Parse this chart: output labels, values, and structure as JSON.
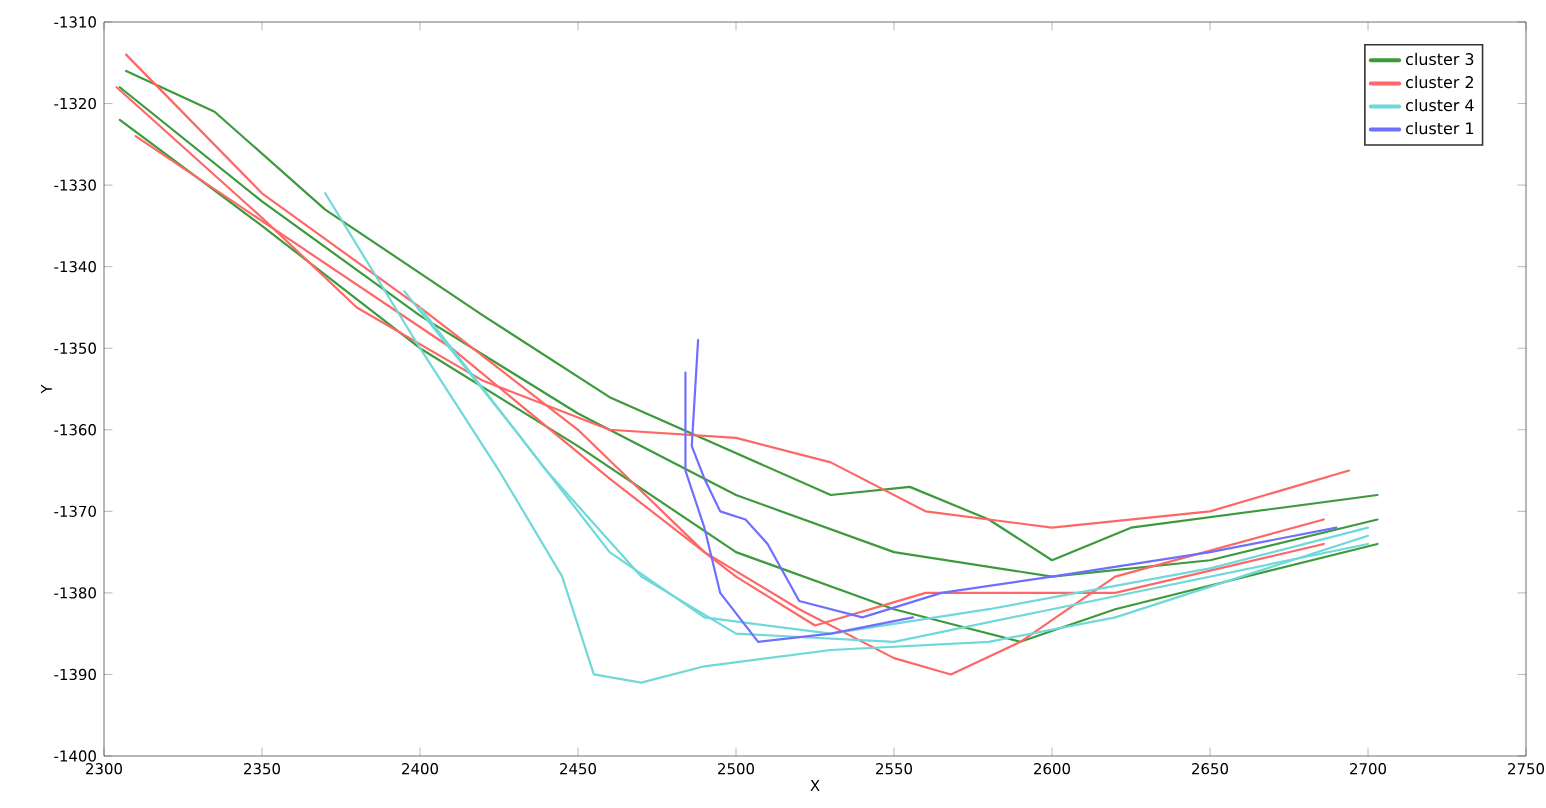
{
  "chart_data": {
    "type": "line",
    "xlabel": "X",
    "ylabel": "Y",
    "xlim": [
      2300,
      2750
    ],
    "ylim": [
      -1400,
      -1310
    ],
    "xticks": [
      2300,
      2350,
      2400,
      2450,
      2500,
      2550,
      2600,
      2650,
      2700,
      2750
    ],
    "yticks": [
      -1400,
      -1390,
      -1380,
      -1370,
      -1360,
      -1350,
      -1340,
      -1330,
      -1320,
      -1310
    ],
    "grid": false,
    "legend": "top right",
    "marker": "none",
    "line_style": "solid",
    "series": [
      {
        "name": "cluster 3",
        "color": "#3c9a3c",
        "x": [
          2305,
          2350,
          2400,
          2450,
          2500,
          2550,
          2600,
          2650,
          2703
        ],
        "values": [
          -1318,
          -1332,
          -1346,
          -1358,
          -1368,
          -1375,
          -1378,
          -1376,
          -1371
        ]
      },
      {
        "color": "#3c9a3c",
        "x": [
          2307,
          2335,
          2370,
          2420,
          2460,
          2530,
          2555,
          2580,
          2600,
          2625,
          2703
        ],
        "values": [
          -1316,
          -1321,
          -1333,
          -1346,
          -1356,
          -1368,
          -1367,
          -1371,
          -1376,
          -1372,
          -1368
        ]
      },
      {
        "color": "#3c9a3c",
        "x": [
          2305,
          2350,
          2400,
          2450,
          2500,
          2550,
          2590,
          2620,
          2703
        ],
        "values": [
          -1322,
          -1335,
          -1350,
          -1362,
          -1375,
          -1382,
          -1386,
          -1382,
          -1374
        ]
      },
      {
        "name": "cluster 2",
        "color": "#ff6666",
        "x": [
          2304,
          2350,
          2380,
          2420,
          2460,
          2500,
          2530,
          2560,
          2600,
          2650,
          2694
        ],
        "values": [
          -1318,
          -1334,
          -1345,
          -1354,
          -1360,
          -1361,
          -1364,
          -1370,
          -1372,
          -1370,
          -1365
        ]
      },
      {
        "color": "#ff6666",
        "x": [
          2307,
          2350,
          2400,
          2450,
          2490,
          2520,
          2550,
          2568,
          2590,
          2620,
          2686
        ],
        "values": [
          -1314,
          -1331,
          -1345,
          -1360,
          -1375,
          -1382,
          -1388,
          -1390,
          -1386,
          -1378,
          -1371
        ]
      },
      {
        "color": "#ff6666",
        "x": [
          2310,
          2360,
          2410,
          2460,
          2500,
          2525,
          2560,
          2620,
          2686
        ],
        "values": [
          -1324,
          -1337,
          -1350,
          -1366,
          -1378,
          -1384,
          -1380,
          -1380,
          -1374
        ]
      },
      {
        "name": "cluster 4",
        "color": "#6fd8d8",
        "x": [
          2370,
          2400,
          2425,
          2445,
          2455,
          2470,
          2490,
          2530,
          2580,
          2620,
          2700
        ],
        "values": [
          -1331,
          -1350,
          -1365,
          -1378,
          -1390,
          -1391,
          -1389,
          -1387,
          -1386,
          -1383,
          -1373
        ]
      },
      {
        "color": "#6fd8d8",
        "x": [
          2395,
          2430,
          2460,
          2490,
          2530,
          2580,
          2650,
          2700
        ],
        "values": [
          -1343,
          -1360,
          -1375,
          -1383,
          -1385,
          -1382,
          -1377,
          -1372
        ]
      },
      {
        "color": "#6fd8d8",
        "x": [
          2400,
          2440,
          2470,
          2500,
          2550,
          2600,
          2700
        ],
        "values": [
          -1345,
          -1365,
          -1378,
          -1385,
          -1386,
          -1382,
          -1374
        ]
      },
      {
        "name": "cluster 1",
        "color": "#6f6fff",
        "x": [
          2488,
          2486,
          2490,
          2495,
          2503,
          2510,
          2520,
          2540,
          2565,
          2600,
          2650,
          2690
        ],
        "values": [
          -1349,
          -1362,
          -1366,
          -1370,
          -1371,
          -1374,
          -1381,
          -1383,
          -1380,
          -1378,
          -1375,
          -1372
        ]
      },
      {
        "color": "#6f6fff",
        "x": [
          2484,
          2484,
          2490,
          2495,
          2507,
          2530,
          2556
        ],
        "values": [
          -1353,
          -1365,
          -1372,
          -1380,
          -1386,
          -1385,
          -1383
        ]
      }
    ]
  }
}
